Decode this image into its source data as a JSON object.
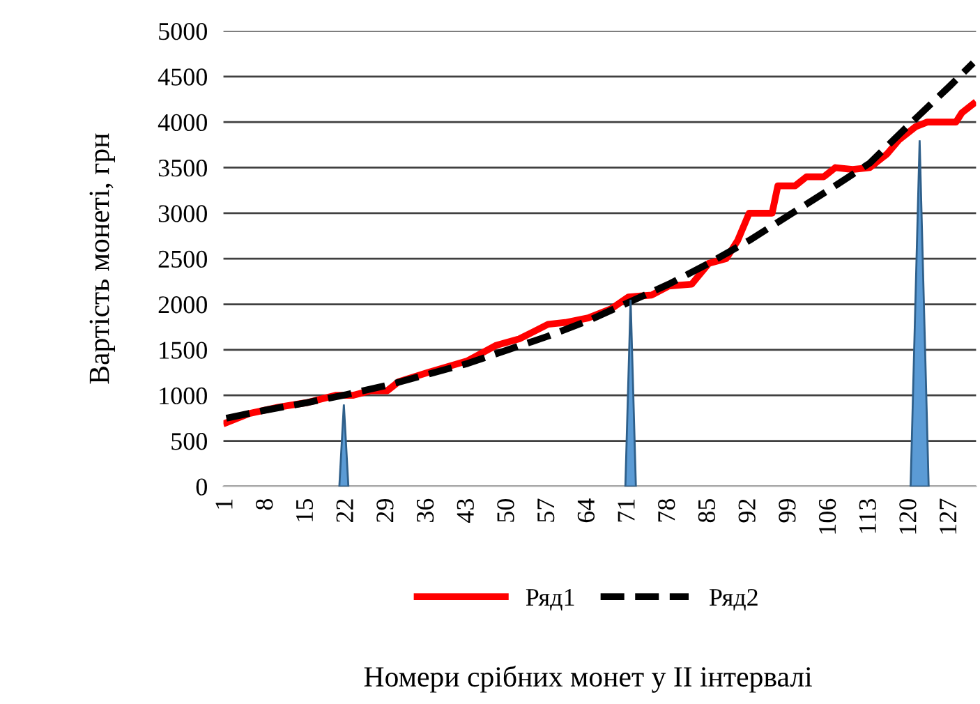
{
  "chart_data": {
    "type": "line",
    "xlabel": "Номери срібних монет у II інтервалі",
    "ylabel": "Вартість монеті, грн",
    "xlim": [
      0.5,
      131.5
    ],
    "xticks": [
      1,
      8,
      15,
      22,
      29,
      36,
      43,
      50,
      57,
      64,
      71,
      78,
      85,
      92,
      99,
      106,
      113,
      120,
      127
    ],
    "ylim": [
      0,
      5000
    ],
    "yticks": [
      0,
      500,
      1000,
      1500,
      2000,
      2500,
      3000,
      3500,
      4000,
      4500,
      5000
    ],
    "grid": "y",
    "legend": "bottom",
    "series": [
      {
        "name": "Ряд1",
        "color": "#ff0000",
        "line_style": "solid",
        "x": [
          1,
          5,
          10,
          15,
          20,
          23,
          26,
          29,
          31,
          36,
          43,
          48,
          52,
          57,
          60,
          64,
          68,
          71,
          75,
          78,
          82,
          85,
          88,
          90,
          92,
          96,
          97,
          100,
          102,
          105,
          107,
          110,
          113,
          116,
          118,
          121,
          123,
          128,
          129,
          131
        ],
        "values": [
          700,
          800,
          870,
          920,
          1000,
          1000,
          1050,
          1050,
          1150,
          1250,
          1380,
          1550,
          1620,
          1780,
          1800,
          1850,
          1950,
          2080,
          2100,
          2200,
          2220,
          2450,
          2500,
          2700,
          3000,
          3000,
          3300,
          3300,
          3400,
          3400,
          3500,
          3480,
          3500,
          3650,
          3800,
          3950,
          4000,
          4000,
          4100,
          4200
        ]
      },
      {
        "name": "Ряд2",
        "color": "#000000",
        "line_style": "dashed",
        "x": [
          1,
          8,
          15,
          22,
          29,
          36,
          43,
          50,
          57,
          64,
          71,
          78,
          85,
          92,
          99,
          106,
          113,
          120,
          127,
          131
        ],
        "values": [
          750,
          840,
          920,
          1010,
          1110,
          1230,
          1350,
          1500,
          1650,
          1820,
          2020,
          2220,
          2450,
          2700,
          2980,
          3260,
          3550,
          3980,
          4400,
          4650
        ]
      }
    ]
  }
}
